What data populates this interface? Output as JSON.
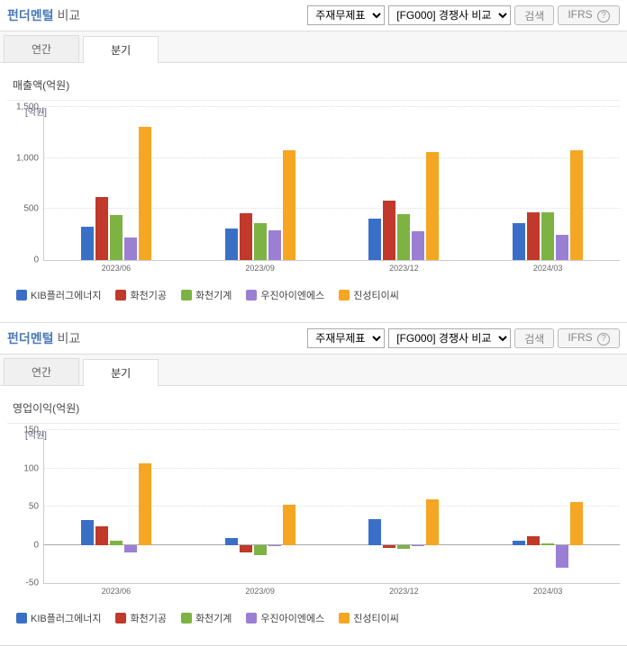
{
  "common": {
    "title_main": "펀더멘털",
    "title_sub": "비교",
    "select1": "주재무제표",
    "select2": "[FG000] 경쟁사 비교",
    "search_btn": "검색",
    "ifrs_btn": "IFRS",
    "help_glyph": "?",
    "tabs": [
      "연간",
      "분기"
    ],
    "active_tab": 1,
    "y_unit": "[억원]",
    "categories": [
      "2023/06",
      "2023/09",
      "2023/12",
      "2024/03"
    ],
    "series": [
      {
        "name": "KIB플러그에너지",
        "color": "#3a6fc7"
      },
      {
        "name": "화천기공",
        "color": "#c0392b"
      },
      {
        "name": "화천기계",
        "color": "#7cb342"
      },
      {
        "name": "우진아이엔에스",
        "color": "#9b7fd4"
      },
      {
        "name": "진성티이씨",
        "color": "#f5a623"
      }
    ]
  },
  "panels": [
    {
      "chart_title": "매출액(억원)",
      "ymin": 0,
      "ymax": 1500,
      "yticks": [
        0,
        500,
        1000,
        1500
      ],
      "data": [
        [
          330,
          620,
          440,
          220,
          1310
        ],
        [
          310,
          460,
          360,
          290,
          1080
        ],
        [
          410,
          580,
          450,
          280,
          1060
        ],
        [
          360,
          470,
          470,
          250,
          1080
        ]
      ]
    },
    {
      "chart_title": "영업이익(억원)",
      "ymin": -50,
      "ymax": 150,
      "yticks": [
        -50,
        0,
        50,
        100,
        150
      ],
      "data": [
        [
          32,
          24,
          5,
          -10,
          106
        ],
        [
          9,
          -10,
          -14,
          -2,
          52
        ],
        [
          33,
          -4,
          -5,
          -2,
          60
        ],
        [
          5,
          11,
          2,
          -30,
          56
        ]
      ]
    }
  ]
}
